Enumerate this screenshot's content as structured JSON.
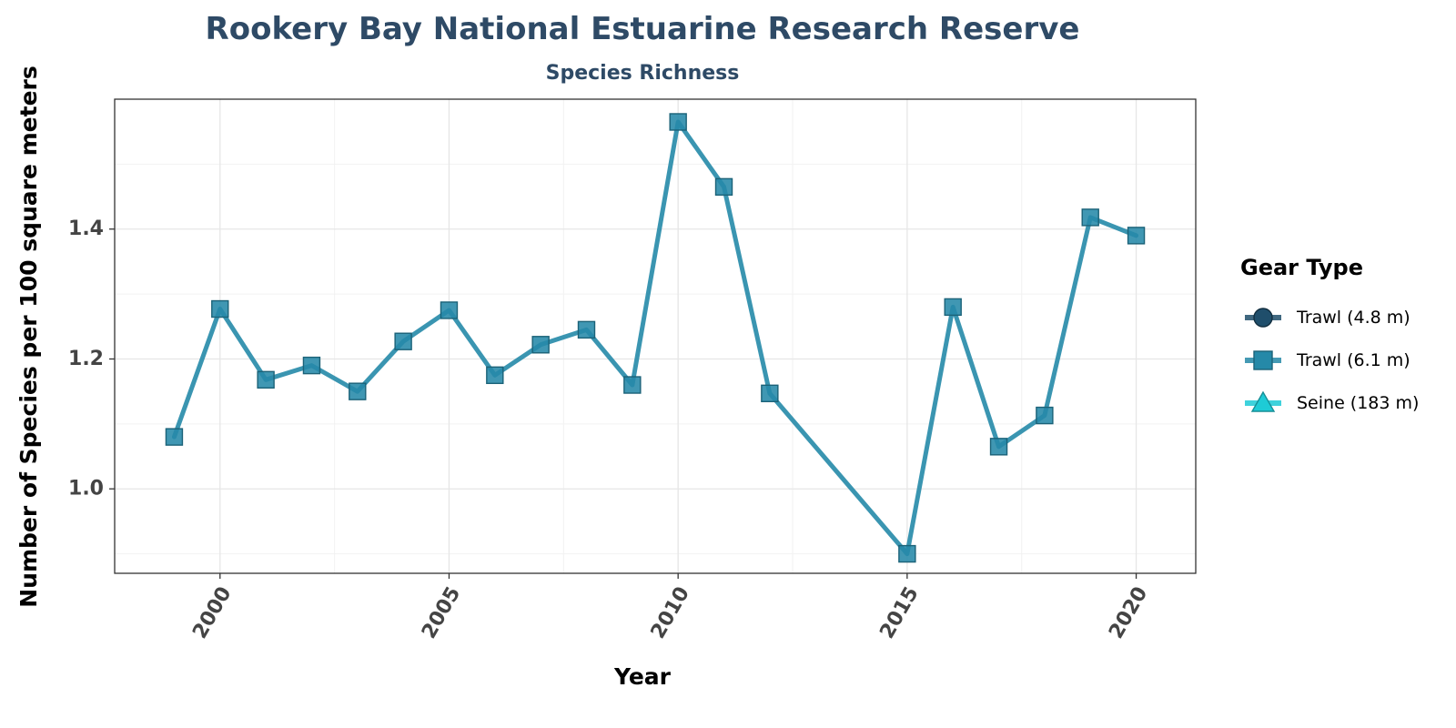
{
  "chart_data": {
    "type": "line",
    "title": "Rookery Bay National Estuarine Research Reserve",
    "subtitle": "Species Richness",
    "xlabel": "Year",
    "ylabel": "Number of Species per 100 square meters",
    "xlim": [
      1997.7,
      2021.3
    ],
    "ylim": [
      0.87,
      1.6
    ],
    "x_ticks": [
      2000,
      2005,
      2010,
      2015,
      2020
    ],
    "y_ticks": [
      1.0,
      1.2,
      1.4
    ],
    "y_tick_labels": [
      "1.0",
      "1.2",
      "1.4"
    ],
    "grid": true,
    "legend": {
      "title": "Gear Type",
      "placement": "right",
      "entries": [
        {
          "label": "Trawl (4.8 m)",
          "color": "#1f4e6b",
          "marker": "circle"
        },
        {
          "label": "Trawl (6.1 m)",
          "color": "#2589a8",
          "marker": "square"
        },
        {
          "label": "Seine (183 m)",
          "color": "#1ecbd6",
          "marker": "triangle"
        }
      ]
    },
    "series": [
      {
        "name": "Trawl (6.1 m)",
        "color": "#2589a8",
        "marker": "square",
        "x": [
          1999,
          2000,
          2001,
          2002,
          2003,
          2004,
          2005,
          2006,
          2007,
          2008,
          2009,
          2010,
          2011,
          2012,
          2015,
          2016,
          2017,
          2018,
          2019,
          2020
        ],
        "y": [
          1.08,
          1.277,
          1.168,
          1.19,
          1.15,
          1.227,
          1.275,
          1.175,
          1.222,
          1.245,
          1.16,
          1.565,
          1.465,
          1.147,
          0.9,
          1.28,
          1.065,
          1.113,
          1.418,
          1.39
        ]
      }
    ]
  }
}
